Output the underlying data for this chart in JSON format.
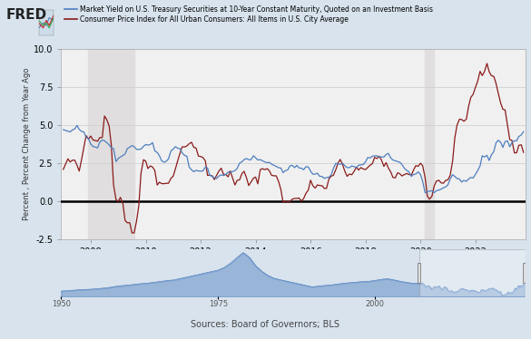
{
  "title_fred": "FRED",
  "legend_blue": "Market Yield on U.S. Treasury Securities at 10-Year Constant Maturity, Quoted on an Investment Basis",
  "legend_red": "Consumer Price Index for All Urban Consumers: All Items in U.S. City Average",
  "ylabel": "Percent , Percent Change from Year Ago",
  "source": "Sources: Board of Governors; BLS",
  "ylim": [
    -2.5,
    10.0
  ],
  "yticks": [
    -2.5,
    0.0,
    2.5,
    5.0,
    7.5,
    10.0
  ],
  "bg_color": "#d8e3ed",
  "plot_bg_color": "#f0f0f0",
  "recession1_start": 2007.917,
  "recession1_end": 2009.583,
  "recession2_start": 2020.167,
  "recession2_end": 2020.5,
  "color_blue": "#4d7ebf",
  "color_red": "#8b1a1a",
  "zero_line_color": "#000000",
  "xstart": 2006.92,
  "xend": 2023.83,
  "xticks": [
    2008,
    2010,
    2012,
    2014,
    2016,
    2018,
    2020,
    2022
  ],
  "nav_xlim": [
    1950,
    2024
  ],
  "nav_xticks": [
    1950,
    1975,
    2000
  ],
  "blue_data": [
    [
      2007.0,
      4.7
    ],
    [
      2007.08,
      4.65
    ],
    [
      2007.17,
      4.6
    ],
    [
      2007.25,
      4.55
    ],
    [
      2007.33,
      4.68
    ],
    [
      2007.42,
      4.75
    ],
    [
      2007.5,
      4.98
    ],
    [
      2007.58,
      4.72
    ],
    [
      2007.67,
      4.58
    ],
    [
      2007.75,
      4.55
    ],
    [
      2007.83,
      4.2
    ],
    [
      2007.92,
      4.1
    ],
    [
      2008.0,
      3.75
    ],
    [
      2008.08,
      3.6
    ],
    [
      2008.17,
      3.55
    ],
    [
      2008.25,
      3.5
    ],
    [
      2008.33,
      3.88
    ],
    [
      2008.42,
      4.02
    ],
    [
      2008.5,
      3.97
    ],
    [
      2008.58,
      3.85
    ],
    [
      2008.67,
      3.7
    ],
    [
      2008.75,
      3.5
    ],
    [
      2008.83,
      3.45
    ],
    [
      2008.92,
      2.6
    ],
    [
      2009.0,
      2.8
    ],
    [
      2009.08,
      2.9
    ],
    [
      2009.17,
      3.0
    ],
    [
      2009.25,
      3.1
    ],
    [
      2009.33,
      3.45
    ],
    [
      2009.42,
      3.55
    ],
    [
      2009.5,
      3.65
    ],
    [
      2009.58,
      3.58
    ],
    [
      2009.67,
      3.4
    ],
    [
      2009.75,
      3.4
    ],
    [
      2009.83,
      3.42
    ],
    [
      2009.92,
      3.6
    ],
    [
      2010.0,
      3.72
    ],
    [
      2010.08,
      3.68
    ],
    [
      2010.17,
      3.72
    ],
    [
      2010.25,
      3.85
    ],
    [
      2010.33,
      3.3
    ],
    [
      2010.42,
      3.2
    ],
    [
      2010.5,
      2.98
    ],
    [
      2010.58,
      2.65
    ],
    [
      2010.67,
      2.55
    ],
    [
      2010.75,
      2.62
    ],
    [
      2010.83,
      2.78
    ],
    [
      2010.92,
      3.3
    ],
    [
      2011.0,
      3.42
    ],
    [
      2011.08,
      3.58
    ],
    [
      2011.17,
      3.47
    ],
    [
      2011.25,
      3.45
    ],
    [
      2011.33,
      3.16
    ],
    [
      2011.42,
      3.0
    ],
    [
      2011.5,
      2.95
    ],
    [
      2011.58,
      2.25
    ],
    [
      2011.67,
      2.05
    ],
    [
      2011.75,
      1.93
    ],
    [
      2011.83,
      2.02
    ],
    [
      2011.92,
      1.98
    ],
    [
      2012.0,
      1.97
    ],
    [
      2012.08,
      1.98
    ],
    [
      2012.17,
      2.22
    ],
    [
      2012.25,
      2.18
    ],
    [
      2012.33,
      1.7
    ],
    [
      2012.42,
      1.62
    ],
    [
      2012.5,
      1.53
    ],
    [
      2012.58,
      1.48
    ],
    [
      2012.67,
      1.65
    ],
    [
      2012.75,
      1.72
    ],
    [
      2012.83,
      1.68
    ],
    [
      2012.92,
      1.76
    ],
    [
      2013.0,
      1.91
    ],
    [
      2013.08,
      1.89
    ],
    [
      2013.17,
      1.95
    ],
    [
      2013.25,
      2.0
    ],
    [
      2013.33,
      2.15
    ],
    [
      2013.42,
      2.5
    ],
    [
      2013.5,
      2.58
    ],
    [
      2013.58,
      2.73
    ],
    [
      2013.67,
      2.8
    ],
    [
      2013.75,
      2.72
    ],
    [
      2013.83,
      2.72
    ],
    [
      2013.92,
      2.98
    ],
    [
      2014.0,
      2.85
    ],
    [
      2014.08,
      2.7
    ],
    [
      2014.17,
      2.73
    ],
    [
      2014.25,
      2.65
    ],
    [
      2014.33,
      2.58
    ],
    [
      2014.42,
      2.52
    ],
    [
      2014.5,
      2.55
    ],
    [
      2014.58,
      2.43
    ],
    [
      2014.67,
      2.35
    ],
    [
      2014.75,
      2.28
    ],
    [
      2014.83,
      2.2
    ],
    [
      2014.92,
      2.17
    ],
    [
      2015.0,
      1.87
    ],
    [
      2015.08,
      2.0
    ],
    [
      2015.17,
      2.05
    ],
    [
      2015.25,
      2.32
    ],
    [
      2015.33,
      2.35
    ],
    [
      2015.42,
      2.2
    ],
    [
      2015.5,
      2.35
    ],
    [
      2015.58,
      2.18
    ],
    [
      2015.67,
      2.16
    ],
    [
      2015.75,
      2.06
    ],
    [
      2015.83,
      2.26
    ],
    [
      2015.92,
      2.24
    ],
    [
      2016.0,
      1.97
    ],
    [
      2016.08,
      1.77
    ],
    [
      2016.17,
      1.77
    ],
    [
      2016.25,
      1.83
    ],
    [
      2016.33,
      1.63
    ],
    [
      2016.42,
      1.62
    ],
    [
      2016.5,
      1.49
    ],
    [
      2016.58,
      1.55
    ],
    [
      2016.67,
      1.57
    ],
    [
      2016.75,
      1.72
    ],
    [
      2016.83,
      2.14
    ],
    [
      2016.92,
      2.49
    ],
    [
      2017.0,
      2.44
    ],
    [
      2017.08,
      2.42
    ],
    [
      2017.17,
      2.48
    ],
    [
      2017.25,
      2.32
    ],
    [
      2017.33,
      2.2
    ],
    [
      2017.42,
      2.2
    ],
    [
      2017.5,
      2.31
    ],
    [
      2017.58,
      2.27
    ],
    [
      2017.67,
      2.2
    ],
    [
      2017.75,
      2.36
    ],
    [
      2017.83,
      2.38
    ],
    [
      2017.92,
      2.41
    ],
    [
      2018.0,
      2.58
    ],
    [
      2018.08,
      2.86
    ],
    [
      2018.17,
      2.84
    ],
    [
      2018.25,
      2.95
    ],
    [
      2018.33,
      2.97
    ],
    [
      2018.42,
      2.98
    ],
    [
      2018.5,
      2.89
    ],
    [
      2018.58,
      2.9
    ],
    [
      2018.67,
      2.9
    ],
    [
      2018.75,
      3.06
    ],
    [
      2018.83,
      3.14
    ],
    [
      2018.92,
      2.83
    ],
    [
      2019.0,
      2.7
    ],
    [
      2019.08,
      2.65
    ],
    [
      2019.17,
      2.6
    ],
    [
      2019.25,
      2.55
    ],
    [
      2019.33,
      2.4
    ],
    [
      2019.42,
      2.14
    ],
    [
      2019.5,
      2.02
    ],
    [
      2019.58,
      1.92
    ],
    [
      2019.67,
      1.62
    ],
    [
      2019.75,
      1.75
    ],
    [
      2019.83,
      1.78
    ],
    [
      2019.92,
      1.92
    ],
    [
      2020.0,
      1.75
    ],
    [
      2020.08,
      1.3
    ],
    [
      2020.17,
      0.54
    ],
    [
      2020.25,
      0.62
    ],
    [
      2020.33,
      0.65
    ],
    [
      2020.42,
      0.68
    ],
    [
      2020.5,
      0.55
    ],
    [
      2020.58,
      0.68
    ],
    [
      2020.67,
      0.72
    ],
    [
      2020.75,
      0.78
    ],
    [
      2020.83,
      0.87
    ],
    [
      2020.92,
      0.93
    ],
    [
      2021.0,
      1.07
    ],
    [
      2021.08,
      1.44
    ],
    [
      2021.17,
      1.74
    ],
    [
      2021.25,
      1.62
    ],
    [
      2021.33,
      1.48
    ],
    [
      2021.42,
      1.45
    ],
    [
      2021.5,
      1.25
    ],
    [
      2021.58,
      1.36
    ],
    [
      2021.67,
      1.3
    ],
    [
      2021.75,
      1.45
    ],
    [
      2021.83,
      1.55
    ],
    [
      2021.92,
      1.52
    ],
    [
      2022.0,
      1.76
    ],
    [
      2022.08,
      1.99
    ],
    [
      2022.17,
      2.32
    ],
    [
      2022.25,
      2.98
    ],
    [
      2022.33,
      2.9
    ],
    [
      2022.42,
      3.01
    ],
    [
      2022.5,
      2.67
    ],
    [
      2022.58,
      3.03
    ],
    [
      2022.67,
      3.26
    ],
    [
      2022.75,
      3.83
    ],
    [
      2022.83,
      4.0
    ],
    [
      2022.92,
      3.87
    ],
    [
      2023.0,
      3.53
    ],
    [
      2023.08,
      3.92
    ],
    [
      2023.17,
      3.96
    ],
    [
      2023.25,
      3.57
    ],
    [
      2023.33,
      3.84
    ],
    [
      2023.42,
      3.97
    ],
    [
      2023.5,
      3.97
    ],
    [
      2023.58,
      4.25
    ],
    [
      2023.67,
      4.35
    ],
    [
      2023.75,
      4.57
    ]
  ],
  "red_data": [
    [
      2007.0,
      2.08
    ],
    [
      2007.08,
      2.42
    ],
    [
      2007.17,
      2.78
    ],
    [
      2007.25,
      2.57
    ],
    [
      2007.33,
      2.69
    ],
    [
      2007.42,
      2.69
    ],
    [
      2007.5,
      2.36
    ],
    [
      2007.58,
      1.97
    ],
    [
      2007.67,
      2.76
    ],
    [
      2007.75,
      3.54
    ],
    [
      2007.83,
      4.31
    ],
    [
      2007.92,
      4.08
    ],
    [
      2008.0,
      4.28
    ],
    [
      2008.08,
      4.03
    ],
    [
      2008.17,
      3.98
    ],
    [
      2008.25,
      3.94
    ],
    [
      2008.33,
      4.18
    ],
    [
      2008.42,
      4.18
    ],
    [
      2008.5,
      5.6
    ],
    [
      2008.58,
      5.37
    ],
    [
      2008.67,
      4.94
    ],
    [
      2008.75,
      3.66
    ],
    [
      2008.83,
      1.07
    ],
    [
      2008.92,
      0.09
    ],
    [
      2009.0,
      -0.03
    ],
    [
      2009.08,
      0.24
    ],
    [
      2009.17,
      -0.18
    ],
    [
      2009.25,
      -1.28
    ],
    [
      2009.33,
      -1.43
    ],
    [
      2009.42,
      -1.43
    ],
    [
      2009.5,
      -2.1
    ],
    [
      2009.58,
      -2.1
    ],
    [
      2009.67,
      -1.29
    ],
    [
      2009.75,
      -0.29
    ],
    [
      2009.83,
      1.84
    ],
    [
      2009.92,
      2.72
    ],
    [
      2010.0,
      2.63
    ],
    [
      2010.08,
      2.14
    ],
    [
      2010.17,
      2.31
    ],
    [
      2010.25,
      2.24
    ],
    [
      2010.33,
      2.02
    ],
    [
      2010.42,
      1.05
    ],
    [
      2010.5,
      1.24
    ],
    [
      2010.58,
      1.15
    ],
    [
      2010.67,
      1.14
    ],
    [
      2010.75,
      1.17
    ],
    [
      2010.83,
      1.17
    ],
    [
      2010.92,
      1.5
    ],
    [
      2011.0,
      1.63
    ],
    [
      2011.08,
      2.11
    ],
    [
      2011.17,
      2.68
    ],
    [
      2011.25,
      3.16
    ],
    [
      2011.33,
      3.57
    ],
    [
      2011.42,
      3.56
    ],
    [
      2011.5,
      3.63
    ],
    [
      2011.58,
      3.77
    ],
    [
      2011.67,
      3.87
    ],
    [
      2011.75,
      3.53
    ],
    [
      2011.83,
      3.5
    ],
    [
      2011.92,
      2.96
    ],
    [
      2012.0,
      2.93
    ],
    [
      2012.08,
      2.87
    ],
    [
      2012.17,
      2.65
    ],
    [
      2012.25,
      1.69
    ],
    [
      2012.33,
      1.7
    ],
    [
      2012.42,
      1.66
    ],
    [
      2012.5,
      1.41
    ],
    [
      2012.58,
      1.69
    ],
    [
      2012.67,
      1.99
    ],
    [
      2012.75,
      2.16
    ],
    [
      2012.83,
      1.76
    ],
    [
      2012.92,
      1.74
    ],
    [
      2013.0,
      1.59
    ],
    [
      2013.08,
      1.98
    ],
    [
      2013.17,
      1.47
    ],
    [
      2013.25,
      1.06
    ],
    [
      2013.33,
      1.36
    ],
    [
      2013.42,
      1.4
    ],
    [
      2013.5,
      1.8
    ],
    [
      2013.58,
      1.96
    ],
    [
      2013.67,
      1.52
    ],
    [
      2013.75,
      1.02
    ],
    [
      2013.83,
      1.24
    ],
    [
      2013.92,
      1.5
    ],
    [
      2014.0,
      1.58
    ],
    [
      2014.08,
      1.13
    ],
    [
      2014.17,
      2.07
    ],
    [
      2014.25,
      2.13
    ],
    [
      2014.33,
      2.07
    ],
    [
      2014.42,
      2.13
    ],
    [
      2014.5,
      1.99
    ],
    [
      2014.58,
      1.7
    ],
    [
      2014.67,
      1.66
    ],
    [
      2014.75,
      1.66
    ],
    [
      2014.83,
      1.32
    ],
    [
      2014.92,
      0.76
    ],
    [
      2015.0,
      -0.09
    ],
    [
      2015.08,
      0.0
    ],
    [
      2015.17,
      -0.07
    ],
    [
      2015.25,
      -0.04
    ],
    [
      2015.33,
      0.12
    ],
    [
      2015.42,
      0.17
    ],
    [
      2015.5,
      0.17
    ],
    [
      2015.58,
      0.2
    ],
    [
      2015.67,
      0.0
    ],
    [
      2015.75,
      0.17
    ],
    [
      2015.83,
      0.5
    ],
    [
      2015.92,
      0.73
    ],
    [
      2016.0,
      1.37
    ],
    [
      2016.08,
      1.02
    ],
    [
      2016.17,
      0.85
    ],
    [
      2016.25,
      1.06
    ],
    [
      2016.33,
      1.02
    ],
    [
      2016.42,
      1.01
    ],
    [
      2016.5,
      0.83
    ],
    [
      2016.58,
      0.83
    ],
    [
      2016.67,
      1.46
    ],
    [
      2016.75,
      1.64
    ],
    [
      2016.83,
      1.69
    ],
    [
      2016.92,
      2.07
    ],
    [
      2017.0,
      2.5
    ],
    [
      2017.08,
      2.74
    ],
    [
      2017.17,
      2.38
    ],
    [
      2017.25,
      1.95
    ],
    [
      2017.33,
      1.63
    ],
    [
      2017.42,
      1.78
    ],
    [
      2017.5,
      1.73
    ],
    [
      2017.58,
      1.94
    ],
    [
      2017.67,
      2.23
    ],
    [
      2017.75,
      2.04
    ],
    [
      2017.83,
      2.2
    ],
    [
      2017.92,
      2.11
    ],
    [
      2018.0,
      2.07
    ],
    [
      2018.08,
      2.21
    ],
    [
      2018.17,
      2.36
    ],
    [
      2018.25,
      2.46
    ],
    [
      2018.33,
      2.87
    ],
    [
      2018.42,
      2.8
    ],
    [
      2018.5,
      2.95
    ],
    [
      2018.58,
      2.7
    ],
    [
      2018.67,
      2.28
    ],
    [
      2018.75,
      2.53
    ],
    [
      2018.83,
      2.18
    ],
    [
      2018.92,
      1.91
    ],
    [
      2019.0,
      1.55
    ],
    [
      2019.08,
      1.52
    ],
    [
      2019.17,
      1.86
    ],
    [
      2019.25,
      1.79
    ],
    [
      2019.33,
      1.65
    ],
    [
      2019.42,
      1.75
    ],
    [
      2019.5,
      1.81
    ],
    [
      2019.58,
      1.75
    ],
    [
      2019.67,
      1.71
    ],
    [
      2019.75,
      2.05
    ],
    [
      2019.83,
      2.33
    ],
    [
      2019.92,
      2.29
    ],
    [
      2020.0,
      2.49
    ],
    [
      2020.08,
      2.33
    ],
    [
      2020.17,
      1.54
    ],
    [
      2020.25,
      0.33
    ],
    [
      2020.33,
      0.12
    ],
    [
      2020.42,
      0.33
    ],
    [
      2020.5,
      0.99
    ],
    [
      2020.58,
      1.31
    ],
    [
      2020.67,
      1.37
    ],
    [
      2020.75,
      1.2
    ],
    [
      2020.83,
      1.17
    ],
    [
      2020.92,
      1.36
    ],
    [
      2021.0,
      1.4
    ],
    [
      2021.08,
      1.68
    ],
    [
      2021.17,
      2.62
    ],
    [
      2021.25,
      4.16
    ],
    [
      2021.33,
      4.99
    ],
    [
      2021.42,
      5.39
    ],
    [
      2021.5,
      5.37
    ],
    [
      2021.58,
      5.25
    ],
    [
      2021.67,
      5.39
    ],
    [
      2021.75,
      6.22
    ],
    [
      2021.83,
      6.81
    ],
    [
      2021.92,
      7.04
    ],
    [
      2022.0,
      7.48
    ],
    [
      2022.08,
      7.87
    ],
    [
      2022.17,
      8.54
    ],
    [
      2022.25,
      8.26
    ],
    [
      2022.33,
      8.52
    ],
    [
      2022.42,
      9.06
    ],
    [
      2022.5,
      8.52
    ],
    [
      2022.58,
      8.26
    ],
    [
      2022.67,
      8.2
    ],
    [
      2022.75,
      7.75
    ],
    [
      2022.83,
      7.11
    ],
    [
      2022.92,
      6.45
    ],
    [
      2023.0,
      6.04
    ],
    [
      2023.08,
      6.0
    ],
    [
      2023.17,
      4.98
    ],
    [
      2023.25,
      4.05
    ],
    [
      2023.33,
      3.99
    ],
    [
      2023.42,
      3.17
    ],
    [
      2023.5,
      3.18
    ],
    [
      2023.58,
      3.67
    ],
    [
      2023.67,
      3.7
    ],
    [
      2023.75,
      3.2
    ]
  ]
}
